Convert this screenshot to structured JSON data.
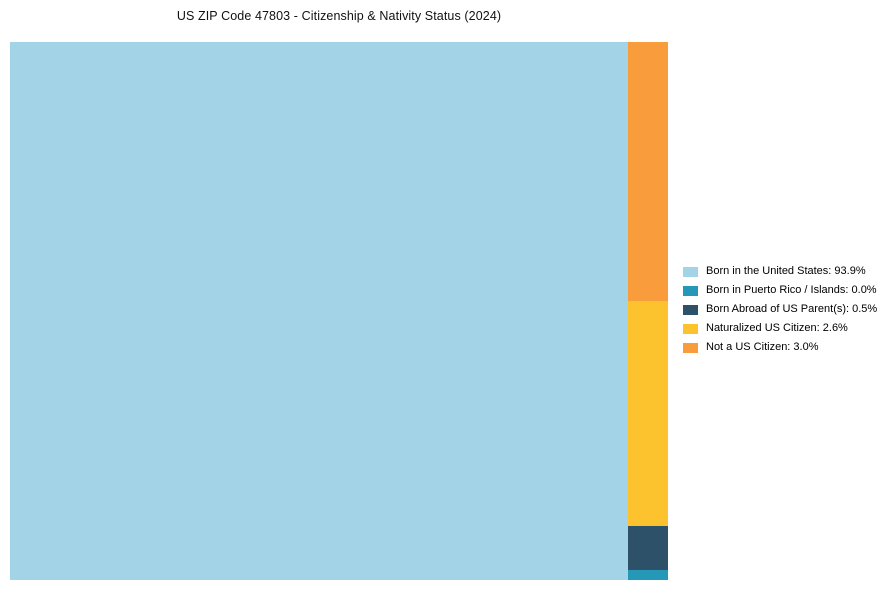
{
  "page": {
    "background": "#ffffff"
  },
  "chart_data": {
    "type": "treemap",
    "title": "US ZIP Code 47803 - Citizenship & Nativity Status (2024)",
    "legend_position": "right",
    "legend_format": "{label}: {value}%",
    "series": [
      {
        "label": "Born in the United States",
        "value": 93.9,
        "color": "#A3D3E6"
      },
      {
        "label": "Born in Puerto Rico / Islands",
        "value": 0.0,
        "color": "#2598B8"
      },
      {
        "label": "Born Abroad of US Parent(s)",
        "value": 0.5,
        "color": "#2D5168"
      },
      {
        "label": "Naturalized US Citizen",
        "value": 2.6,
        "color": "#FDC32F"
      },
      {
        "label": "Not a US Citizen",
        "value": 3.0,
        "color": "#F89C3C"
      }
    ],
    "layout": {
      "main_segment": "Born in the United States",
      "side_column_order_top_to_bottom": [
        "Not a US Citizen",
        "Naturalized US Citizen",
        "Born Abroad of US Parent(s)",
        "Born in Puerto Rico / Islands"
      ],
      "min_visible_weight": 0.12
    }
  }
}
